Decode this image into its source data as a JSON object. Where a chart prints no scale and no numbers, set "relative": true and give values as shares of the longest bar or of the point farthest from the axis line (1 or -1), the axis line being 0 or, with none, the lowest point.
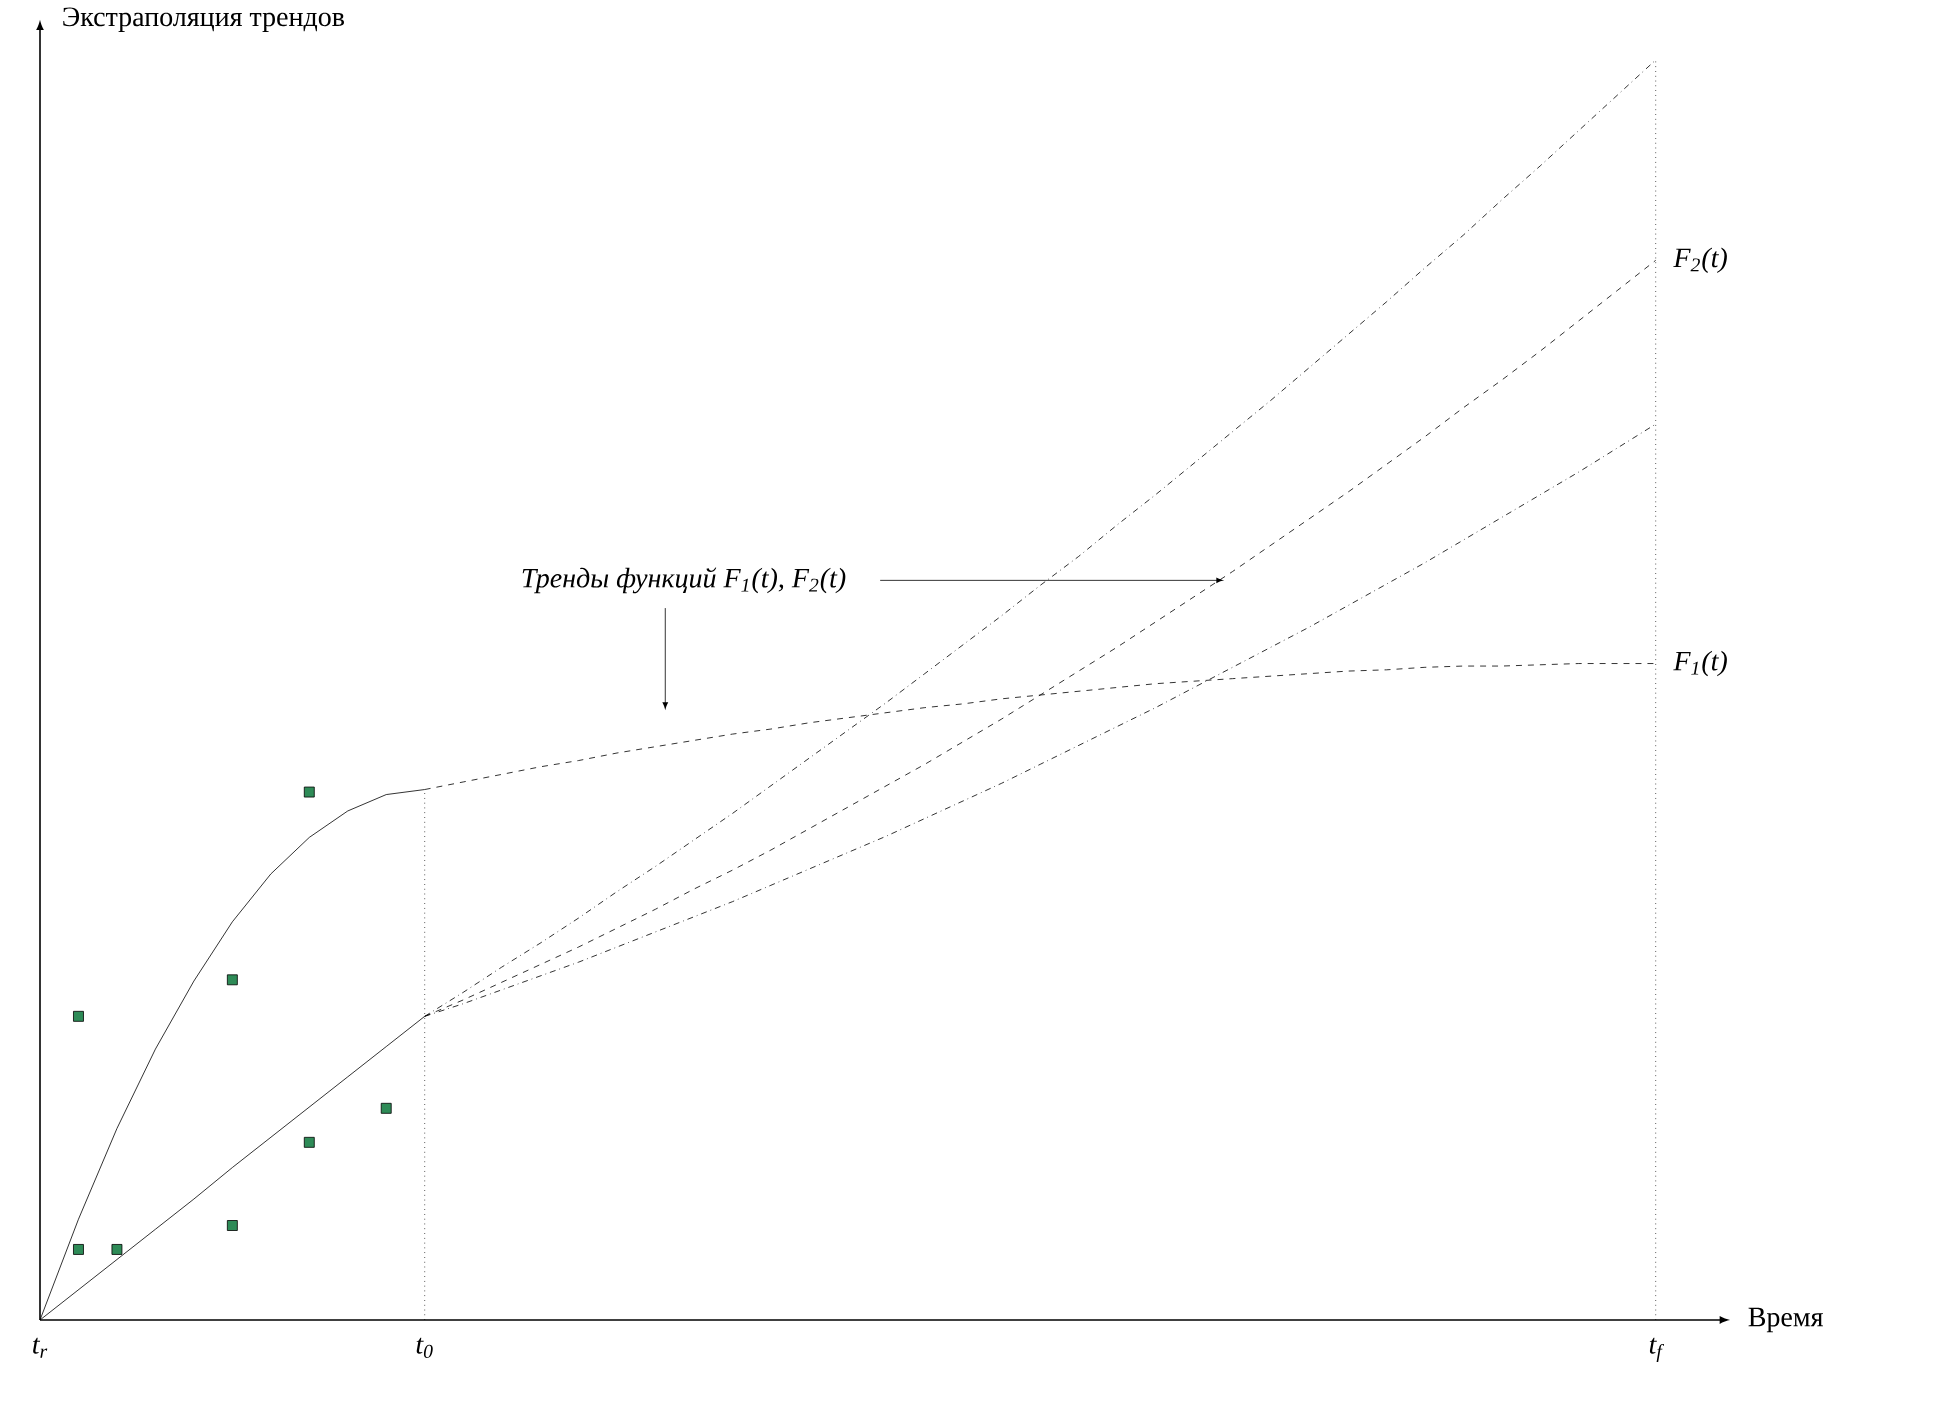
{
  "chart_data": {
    "type": "line",
    "relative": true,
    "xlabel": "Время",
    "ylabel": "Экстраполяция трендов",
    "categories": [
      "t$_{r}$",
      null,
      null,
      null,
      null,
      null,
      null,
      null,
      null,
      null,
      "t$_{0}$",
      null,
      null,
      null,
      null,
      null,
      null,
      null,
      null,
      null,
      null,
      null,
      null,
      null,
      null,
      null,
      null,
      null,
      null,
      null,
      null,
      null,
      null,
      null,
      null,
      null,
      null,
      null,
      null,
      null,
      null,
      null,
      "t$_{f}$"
    ],
    "ref_lines": [
      {
        "axis": "x",
        "value": "t$_{0}$",
        "line_style": "dotted"
      },
      {
        "axis": "x",
        "value": "t$_{f}$",
        "line_style": "dotted"
      }
    ],
    "annotations": [
      "Тренды функций F$_{1}$(t), F$_{2}$(t)"
    ],
    "series": [
      {
        "color": "#000000",
        "line_style": "solid",
        "values": [
          0,
          0.08,
          0.152,
          0.215,
          0.269,
          0.316,
          0.354,
          0.383,
          0.404,
          0.417,
          0.421,
          null,
          null,
          null,
          null,
          null,
          null,
          null,
          null,
          null,
          null,
          null,
          null,
          null,
          null,
          null,
          null,
          null,
          null,
          null,
          null,
          null,
          null,
          null,
          null,
          null,
          null,
          null,
          null,
          null,
          null,
          null,
          null
        ]
      },
      {
        "color": "#000000",
        "line_style": "solid",
        "values": [
          0,
          0.024,
          0.048,
          0.072,
          0.096,
          0.121,
          0.145,
          0.169,
          0.193,
          0.217,
          0.241,
          null,
          null,
          null,
          null,
          null,
          null,
          null,
          null,
          null,
          null,
          null,
          null,
          null,
          null,
          null,
          null,
          null,
          null,
          null,
          null,
          null,
          null,
          null,
          null,
          null,
          null,
          null,
          null,
          null,
          null,
          null,
          null
        ]
      },
      {
        "name": "F$_{1}$(t)",
        "color": "#000000",
        "line_style": "dashed",
        "values": [
          null,
          null,
          null,
          null,
          null,
          null,
          null,
          null,
          null,
          null,
          0.421,
          0.427,
          0.433,
          0.439,
          0.444,
          0.45,
          0.455,
          0.46,
          0.465,
          0.469,
          0.474,
          0.478,
          0.482,
          0.486,
          0.489,
          0.493,
          0.496,
          0.499,
          0.502,
          0.505,
          0.507,
          0.509,
          0.511,
          0.513,
          0.515,
          0.516,
          0.518,
          0.519,
          0.519,
          0.52,
          0.521,
          0.521,
          0.521
        ]
      },
      {
        "name": "F$_{2}$(t)",
        "color": "#000000",
        "line_style": "dashed",
        "values": [
          null,
          null,
          null,
          null,
          null,
          null,
          null,
          null,
          null,
          null,
          0.241,
          0.254,
          0.268,
          0.282,
          0.296,
          0.311,
          0.326,
          0.342,
          0.357,
          0.373,
          0.39,
          0.407,
          0.424,
          0.441,
          0.459,
          0.477,
          0.496,
          0.515,
          0.534,
          0.554,
          0.574,
          0.594,
          0.615,
          0.636,
          0.657,
          0.679,
          0.701,
          0.724,
          0.746,
          0.769,
          0.793,
          0.817,
          0.841
        ]
      },
      {
        "color": "#000000",
        "line_style": "dashdot",
        "values": [
          null,
          null,
          null,
          null,
          null,
          null,
          null,
          null,
          null,
          null,
          0.241,
          0.26,
          0.28,
          0.299,
          0.319,
          0.34,
          0.36,
          0.381,
          0.402,
          0.424,
          0.446,
          0.468,
          0.49,
          0.513,
          0.536,
          0.559,
          0.583,
          0.606,
          0.631,
          0.655,
          0.68,
          0.705,
          0.73,
          0.756,
          0.782,
          0.808,
          0.835,
          0.861,
          0.889,
          0.916,
          0.944,
          0.972,
          1.0
        ]
      },
      {
        "color": "#000000",
        "line_style": "dashdot",
        "values": [
          null,
          null,
          null,
          null,
          null,
          null,
          null,
          null,
          null,
          null,
          0.241,
          0.251,
          0.262,
          0.273,
          0.284,
          0.296,
          0.308,
          0.32,
          0.332,
          0.345,
          0.358,
          0.371,
          0.384,
          0.398,
          0.412,
          0.426,
          0.441,
          0.456,
          0.471,
          0.486,
          0.502,
          0.518,
          0.534,
          0.55,
          0.567,
          0.584,
          0.601,
          0.619,
          0.637,
          0.655,
          0.673,
          0.692,
          0.711
        ]
      },
      {
        "type": "scatter",
        "marker": "square",
        "color": "#2e8b57",
        "values": [
          null,
          0.056,
          0.056,
          null,
          null,
          0.075,
          null,
          0.141,
          null,
          0.168,
          null,
          null,
          null,
          null,
          null,
          null,
          null,
          null,
          null,
          null,
          null,
          null,
          null,
          null,
          null,
          null,
          null,
          null,
          null,
          null,
          null,
          null,
          null,
          null,
          null,
          null,
          null,
          null,
          null,
          null,
          null,
          null,
          null
        ]
      },
      {
        "type": "scatter",
        "marker": "square",
        "color": "#2e8b57",
        "values": [
          null,
          0.241,
          null,
          null,
          null,
          0.27,
          null,
          0.419,
          null,
          null,
          null,
          null,
          null,
          null,
          null,
          null,
          null,
          null,
          null,
          null,
          null,
          null,
          null,
          null,
          null,
          null,
          null,
          null,
          null,
          null,
          null,
          null,
          null,
          null,
          null,
          null,
          null,
          null,
          null,
          null,
          null,
          null,
          null
        ]
      }
    ]
  }
}
